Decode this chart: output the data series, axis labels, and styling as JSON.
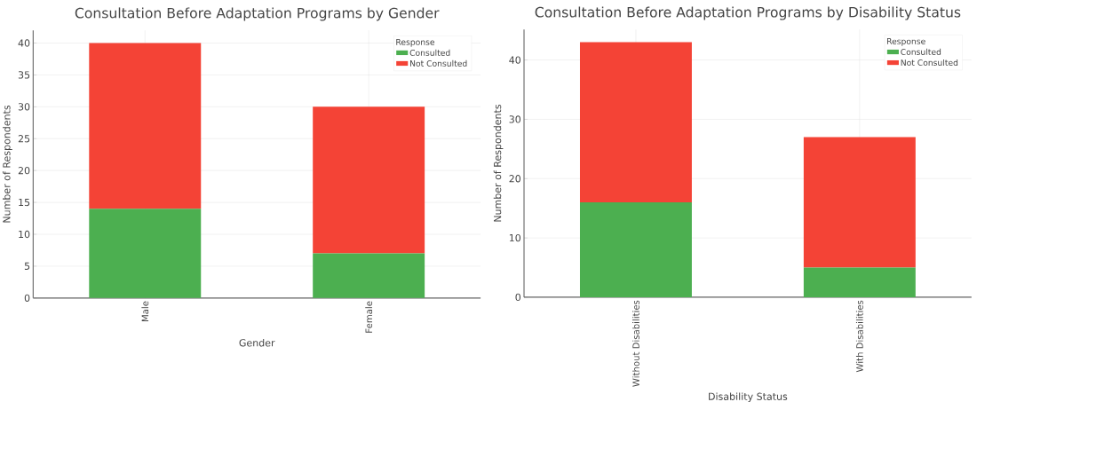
{
  "chart_data": [
    {
      "type": "bar",
      "stacked": true,
      "title": "Consultation Before Adaptation Programs by Gender",
      "xlabel": "Gender",
      "ylabel": "Number of Respondents",
      "legend_title": "Response",
      "categories": [
        "Male",
        "Female"
      ],
      "series": [
        {
          "name": "Consulted",
          "color": "#4caf50",
          "values": [
            14,
            7
          ]
        },
        {
          "name": "Not Consulted",
          "color": "#f44336",
          "values": [
            26,
            23
          ]
        }
      ],
      "ylim": [
        0,
        42
      ],
      "yticks": [
        0,
        5,
        10,
        15,
        20,
        25,
        30,
        35,
        40
      ],
      "grid": true,
      "legend": "top right"
    },
    {
      "type": "bar",
      "stacked": true,
      "title": "Consultation Before Adaptation Programs by Disability Status",
      "xlabel": "Disability Status",
      "ylabel": "Number of Respondents",
      "legend_title": "Response",
      "categories": [
        "Without Disabilities",
        "With Disabilities"
      ],
      "series": [
        {
          "name": "Consulted",
          "color": "#4caf50",
          "values": [
            16,
            5
          ]
        },
        {
          "name": "Not Consulted",
          "color": "#f44336",
          "values": [
            27,
            22
          ]
        }
      ],
      "ylim": [
        0,
        45.15
      ],
      "yticks": [
        0,
        10,
        20,
        30,
        40
      ],
      "grid": true,
      "legend": "top right"
    }
  ]
}
